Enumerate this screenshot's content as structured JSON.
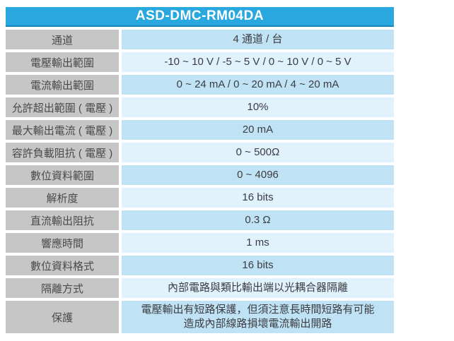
{
  "spec_table": {
    "title": "ASD-DMC-RM04DA",
    "rows": [
      {
        "label": "通道",
        "value": "4 通道 / 台"
      },
      {
        "label": "電壓輸出範圍",
        "value": "-10 ~ 10 V / -5 ~ 5 V / 0 ~ 10 V / 0 ~ 5 V"
      },
      {
        "label": "電流輸出範圍",
        "value": "0 ~ 24 mA / 0 ~ 20 mA / 4 ~ 20 mA"
      },
      {
        "label": "允許超出範圍 ( 電壓 )",
        "value": "10%"
      },
      {
        "label": "最大輸出電流 ( 電壓 )",
        "value": "20 mA"
      },
      {
        "label": "容許負載阻抗 ( 電壓 )",
        "value": "0 ~ 500Ω"
      },
      {
        "label": "數位資料範圍",
        "value": "0 ~ 4096"
      },
      {
        "label": "解析度",
        "value": "16 bits"
      },
      {
        "label": "直流輸出阻抗",
        "value": "0.3 Ω"
      },
      {
        "label": "響應時間",
        "value": "1 ms"
      },
      {
        "label": "數位資料格式",
        "value": "16 bits"
      },
      {
        "label": "隔離方式",
        "value": "內部電路與類比輸出端以光耦合器隔離"
      },
      {
        "label": "保護",
        "value": "電壓輸出有短路保護，但須注意長時間短路有可能造成內部線路損壞電流輸出開路"
      }
    ],
    "colors": {
      "header_bg": "#29A8DF",
      "header_border": "#1886BB",
      "header_text": "#FFFFFF",
      "label_bg": "#C6C6C6",
      "label_text": "#4A4A4A",
      "value_bg_dark": "#BFE3F5",
      "value_bg_light": "#E0F2FB",
      "value_text": "#3C3C42"
    }
  }
}
